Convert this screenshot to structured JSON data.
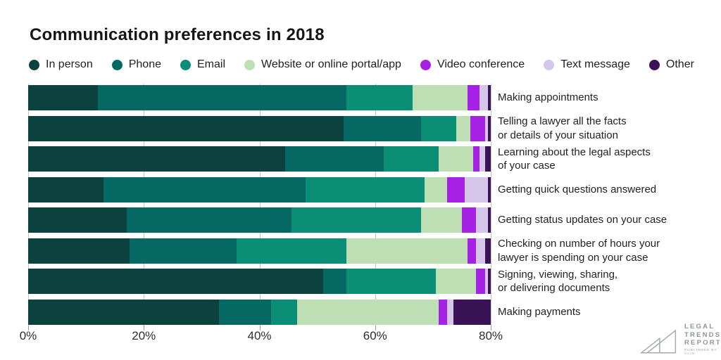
{
  "title": "Communication preferences in 2018",
  "chart_data": {
    "type": "bar",
    "stacked": true,
    "orientation": "horizontal",
    "unit": "percent",
    "xlim": [
      0,
      80
    ],
    "grid": true,
    "legend_position": "top",
    "x_ticks": [
      {
        "value": 0,
        "label": "0%"
      },
      {
        "value": 20,
        "label": "20%"
      },
      {
        "value": 40,
        "label": "40%"
      },
      {
        "value": 60,
        "label": "60%"
      },
      {
        "value": 80,
        "label": "80%"
      }
    ],
    "series": [
      {
        "name": "In person",
        "color": "#0c423e"
      },
      {
        "name": "Phone",
        "color": "#066862"
      },
      {
        "name": "Email",
        "color": "#0a8e76"
      },
      {
        "name": "Website or online portal/app",
        "color": "#bedfb4"
      },
      {
        "name": "Video conference",
        "color": "#a521e3"
      },
      {
        "name": "Text message",
        "color": "#d4c7e9"
      },
      {
        "name": "Other",
        "color": "#3a1256"
      }
    ],
    "rows": [
      {
        "label_lines": [
          "Making appointments"
        ],
        "values": [
          12,
          43,
          11.5,
          9.5,
          2,
          1.5,
          0.5
        ]
      },
      {
        "label_lines": [
          "Telling a lawyer all the facts",
          "or details of your situation"
        ],
        "values": [
          54.5,
          13.5,
          6,
          2.5,
          2.5,
          0.5,
          0.5
        ]
      },
      {
        "label_lines": [
          "Learning about the legal aspects",
          "of your case"
        ],
        "values": [
          44.5,
          17,
          9.5,
          6,
          1,
          1,
          1
        ]
      },
      {
        "label_lines": [
          "Getting quick questions answered"
        ],
        "values": [
          13,
          35,
          20.5,
          4,
          3,
          4,
          0.5
        ]
      },
      {
        "label_lines": [
          "Getting status updates on your case"
        ],
        "values": [
          17,
          28.5,
          22.5,
          7,
          2.5,
          2,
          0.5
        ]
      },
      {
        "label_lines": [
          "Checking on number of hours your",
          "lawyer is spending on your case"
        ],
        "values": [
          17.5,
          18.5,
          19,
          21,
          1.5,
          1.5,
          1
        ]
      },
      {
        "label_lines": [
          "Signing, viewing, sharing,",
          "or delivering documents"
        ],
        "values": [
          51,
          4,
          15.5,
          7,
          1.5,
          0.5,
          0.5
        ]
      },
      {
        "label_lines": [
          "Making payments"
        ],
        "values": [
          33,
          9,
          4.5,
          24.5,
          1.5,
          1,
          6.5
        ]
      }
    ]
  },
  "logo": {
    "line1": "LEGAL",
    "line2": "TRENDS",
    "line3": "REPORT",
    "tagline": "PUBLISHED BY CLIO"
  }
}
